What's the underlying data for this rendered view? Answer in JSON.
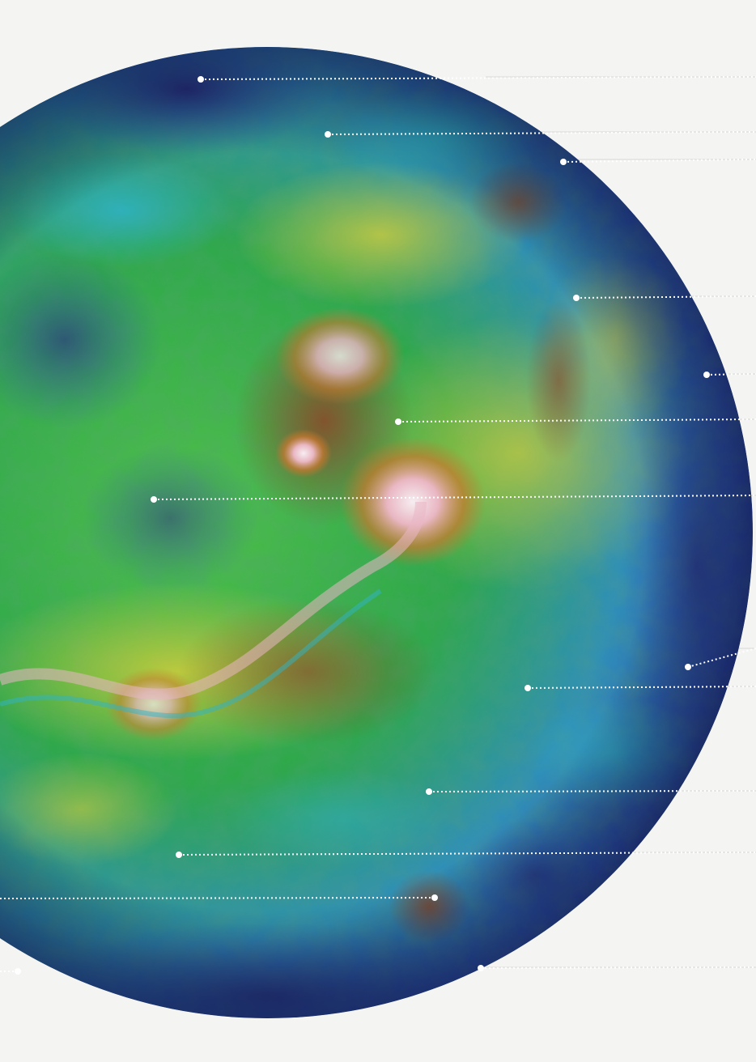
{
  "image": {
    "subject": "venus-radar-topographic-map",
    "palette": {
      "lowlands_deep": "#2a2f86",
      "lowlands": "#2f56b8",
      "plains_cyan": "#2fb3c8",
      "plains_green": "#2ea84a",
      "midland_yellow": "#d9cf3a",
      "highland_orange": "#c9772e",
      "highland_brown": "#8a4a2a",
      "peak_pink": "#e9b7c4",
      "peak_white": "#f6eef1",
      "page_background": "#f4f4f2",
      "leader_line": "#ffffff"
    }
  },
  "annotations": [
    {
      "id": "marker-1"
    },
    {
      "id": "marker-2"
    },
    {
      "id": "marker-3"
    },
    {
      "id": "marker-4"
    },
    {
      "id": "marker-5"
    },
    {
      "id": "marker-6"
    },
    {
      "id": "marker-7"
    },
    {
      "id": "marker-8"
    },
    {
      "id": "marker-9"
    },
    {
      "id": "marker-10"
    },
    {
      "id": "marker-11"
    },
    {
      "id": "marker-12"
    },
    {
      "id": "marker-13"
    }
  ]
}
